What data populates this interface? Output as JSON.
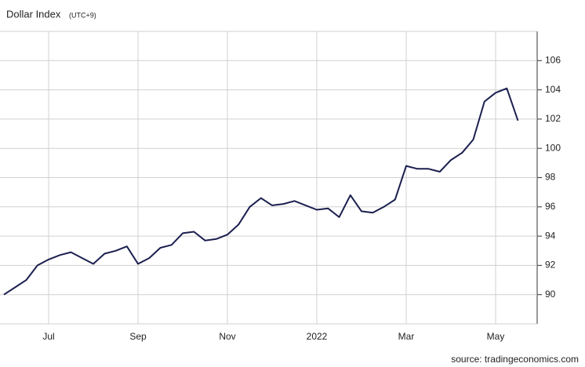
{
  "chart_data": {
    "type": "line",
    "title": "Dollar Index",
    "subtitle": "(UTC+9)",
    "source": "source: tradingeconomics.com",
    "categories": [
      null,
      null,
      null,
      null,
      "Jul",
      null,
      null,
      null,
      null,
      null,
      null,
      null,
      "Sep",
      null,
      null,
      null,
      null,
      null,
      null,
      null,
      "Nov",
      null,
      null,
      null,
      null,
      null,
      null,
      null,
      "2022",
      null,
      null,
      null,
      null,
      null,
      null,
      null,
      "Mar",
      null,
      null,
      null,
      null,
      null,
      null,
      null,
      "May",
      null,
      null
    ],
    "series": [
      {
        "name": "Dollar Index",
        "color": "#1b1f4f",
        "values": [
          90.0,
          90.5,
          91.0,
          92.0,
          92.4,
          92.7,
          92.9,
          92.5,
          92.1,
          92.8,
          93.0,
          93.3,
          92.1,
          92.5,
          93.2,
          93.4,
          94.2,
          94.3,
          93.7,
          93.8,
          94.1,
          94.8,
          96.0,
          96.6,
          96.1,
          96.2,
          96.4,
          96.1,
          95.8,
          95.9,
          95.3,
          96.8,
          95.7,
          95.6,
          96.0,
          96.5,
          98.8,
          98.6,
          98.6,
          98.4,
          99.2,
          99.7,
          100.6,
          103.2,
          103.8,
          104.1,
          101.9
        ]
      }
    ],
    "ylim": [
      88,
      108
    ],
    "yticks": [
      90,
      92,
      94,
      96,
      98,
      100,
      102,
      104,
      106
    ],
    "grid": true
  }
}
